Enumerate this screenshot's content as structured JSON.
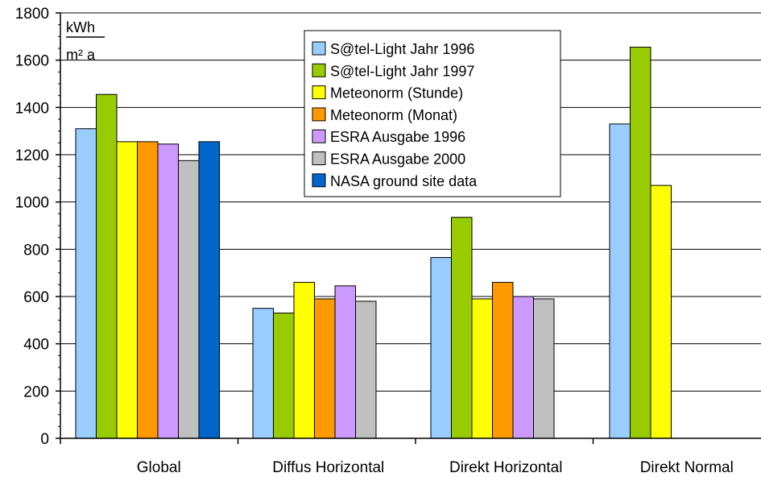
{
  "chart_data": {
    "type": "bar",
    "categories": [
      "Global",
      "Diffus Horizontal",
      "Direkt Horizontal",
      "Direkt Normal"
    ],
    "series": [
      {
        "name": "S@tel-Light Jahr 1996",
        "color": "#99ccff",
        "values": [
          1310,
          550,
          765,
          1330
        ]
      },
      {
        "name": "S@tel-Light Jahr 1997",
        "color": "#99cc00",
        "values": [
          1455,
          530,
          935,
          1655
        ]
      },
      {
        "name": "Meteonorm (Stunde)",
        "color": "#ffff00",
        "values": [
          1255,
          660,
          590,
          1070
        ]
      },
      {
        "name": "Meteonorm (Monat)",
        "color": "#ff9900",
        "values": [
          1255,
          590,
          660,
          null
        ]
      },
      {
        "name": "ESRA Ausgabe 1996",
        "color": "#cc99ff",
        "values": [
          1245,
          645,
          600,
          null
        ]
      },
      {
        "name": "ESRA Ausgabe 2000",
        "color": "#c0c0c0",
        "values": [
          1175,
          580,
          590,
          null
        ]
      },
      {
        "name": "NASA ground site data",
        "color": "#0066cc",
        "values": [
          1255,
          null,
          null,
          null
        ]
      }
    ],
    "ylim": [
      0,
      1800
    ],
    "yticks": [
      0,
      200,
      400,
      600,
      800,
      1000,
      1200,
      1400,
      1600,
      1800
    ],
    "unit_numerator": "kWh",
    "unit_denominator": "m² a",
    "grid": true,
    "legend_position": "top-center"
  }
}
